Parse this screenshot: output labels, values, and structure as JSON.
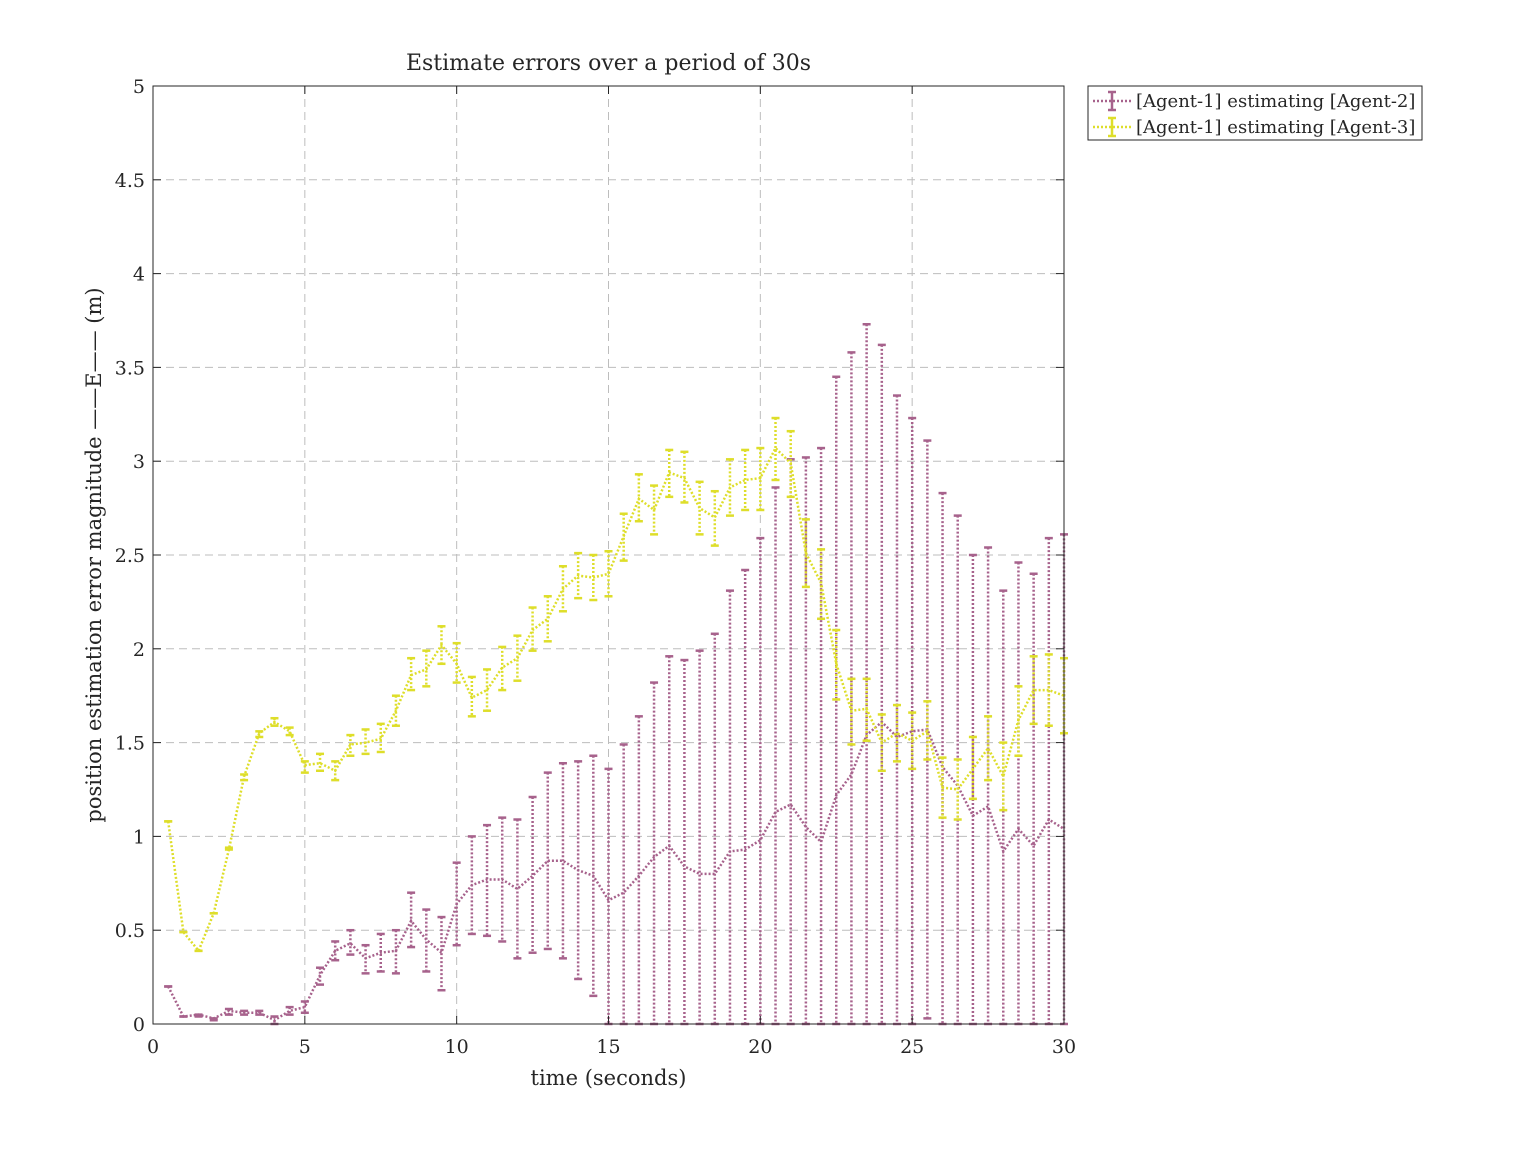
{
  "chart_data": {
    "type": "line",
    "title": "Estimate errors over a period of 30s",
    "xlabel": "time (seconds)",
    "ylabel": "position estimation error magnitude ——E—— (m)",
    "xlim": [
      0,
      30
    ],
    "ylim": [
      0,
      5
    ],
    "xticks": [
      0,
      5,
      10,
      15,
      20,
      25,
      30
    ],
    "xtick_labels": [
      "0",
      "5",
      "10",
      "15",
      "20",
      "25",
      "30"
    ],
    "yticks": [
      0,
      0.5,
      1,
      1.5,
      2,
      2.5,
      3,
      3.5,
      4,
      4.5,
      5
    ],
    "ytick_labels": [
      "0",
      "0.5",
      "1",
      "1.5",
      "2",
      "2.5",
      "3",
      "3.5",
      "4",
      "4.5",
      "5"
    ],
    "grid": true,
    "legend_position": "outside top-right",
    "x": [
      0.5,
      1,
      1.5,
      2,
      2.5,
      3,
      3.5,
      4,
      4.5,
      5,
      5.5,
      6,
      6.5,
      7,
      7.5,
      8,
      8.5,
      9,
      9.5,
      10,
      10.5,
      11,
      11.5,
      12,
      12.5,
      13,
      13.5,
      14,
      14.5,
      15,
      15.5,
      16,
      16.5,
      17,
      17.5,
      18,
      18.5,
      19,
      19.5,
      20,
      20.5,
      21,
      21.5,
      22,
      22.5,
      23,
      23.5,
      24,
      24.5,
      25,
      25.5,
      26,
      26.5,
      27,
      27.5,
      28,
      28.5,
      29,
      29.5,
      30
    ],
    "series": [
      {
        "name": "[Agent-1] estimating [Agent-2]",
        "color": "#a7628c",
        "values": [
          0.2,
          0.04,
          0.05,
          0.03,
          0.07,
          0.06,
          0.06,
          0.02,
          0.07,
          0.09,
          0.26,
          0.39,
          0.43,
          0.35,
          0.38,
          0.39,
          0.55,
          0.45,
          0.38,
          0.64,
          0.74,
          0.77,
          0.77,
          0.72,
          0.79,
          0.87,
          0.87,
          0.82,
          0.79,
          0.66,
          0.7,
          0.79,
          0.89,
          0.95,
          0.84,
          0.8,
          0.8,
          0.92,
          0.93,
          0.98,
          1.13,
          1.17,
          1.05,
          0.97,
          1.22,
          1.33,
          1.54,
          1.61,
          1.53,
          1.56,
          1.57,
          1.37,
          1.27,
          1.11,
          1.16,
          0.92,
          1.04,
          0.95,
          1.09,
          1.04
        ],
        "lower": [
          0.2,
          0.04,
          0.04,
          0.02,
          0.05,
          0.05,
          0.05,
          0.0,
          0.05,
          0.06,
          0.21,
          0.34,
          0.37,
          0.27,
          0.28,
          0.27,
          0.41,
          0.28,
          0.18,
          0.42,
          0.48,
          0.47,
          0.44,
          0.35,
          0.38,
          0.4,
          0.35,
          0.24,
          0.15,
          0,
          0,
          0,
          0,
          0,
          0,
          0,
          0,
          0,
          0,
          0,
          0,
          0,
          0,
          0,
          0,
          0,
          0,
          0,
          0,
          0,
          0.03,
          0,
          0,
          0,
          0,
          0,
          0,
          0,
          0,
          0
        ],
        "upper": [
          0.2,
          0.04,
          0.05,
          0.03,
          0.08,
          0.07,
          0.07,
          0.04,
          0.09,
          0.12,
          0.3,
          0.44,
          0.5,
          0.42,
          0.48,
          0.5,
          0.7,
          0.61,
          0.57,
          0.86,
          1.0,
          1.06,
          1.1,
          1.09,
          1.21,
          1.34,
          1.39,
          1.4,
          1.43,
          1.36,
          1.49,
          1.64,
          1.82,
          1.96,
          1.94,
          1.99,
          2.08,
          2.31,
          2.42,
          2.59,
          2.86,
          3.01,
          3.02,
          3.07,
          3.45,
          3.58,
          3.73,
          3.62,
          3.35,
          3.23,
          3.11,
          2.83,
          2.71,
          2.5,
          2.54,
          2.31,
          2.46,
          2.4,
          2.59,
          2.61
        ]
      },
      {
        "name": "[Agent-1] estimating [Agent-3]",
        "color": "#dede2a",
        "values": [
          1.08,
          0.49,
          0.39,
          0.59,
          0.93,
          1.32,
          1.55,
          1.61,
          1.56,
          1.38,
          1.39,
          1.35,
          1.49,
          1.5,
          1.52,
          1.67,
          1.86,
          1.89,
          2.02,
          1.92,
          1.74,
          1.78,
          1.9,
          1.95,
          2.1,
          2.16,
          2.32,
          2.39,
          2.38,
          2.4,
          2.6,
          2.8,
          2.74,
          2.94,
          2.91,
          2.75,
          2.7,
          2.86,
          2.9,
          2.91,
          3.07,
          2.99,
          2.51,
          2.35,
          1.92,
          1.67,
          1.68,
          1.5,
          1.55,
          1.51,
          1.56,
          1.26,
          1.25,
          1.36,
          1.47,
          1.32,
          1.62,
          1.78,
          1.78,
          1.75
        ],
        "lower": [
          1.08,
          0.49,
          0.39,
          0.59,
          0.93,
          1.3,
          1.53,
          1.59,
          1.54,
          1.34,
          1.35,
          1.3,
          1.43,
          1.44,
          1.45,
          1.59,
          1.78,
          1.8,
          1.92,
          1.82,
          1.64,
          1.67,
          1.78,
          1.83,
          1.99,
          2.04,
          2.2,
          2.27,
          2.26,
          2.28,
          2.47,
          2.68,
          2.61,
          2.81,
          2.78,
          2.61,
          2.55,
          2.71,
          2.74,
          2.74,
          2.9,
          2.81,
          2.33,
          2.16,
          1.73,
          1.49,
          1.51,
          1.35,
          1.4,
          1.36,
          1.41,
          1.1,
          1.09,
          1.2,
          1.3,
          1.14,
          1.43,
          1.6,
          1.59,
          1.55
        ],
        "upper": [
          1.08,
          0.49,
          0.39,
          0.59,
          0.94,
          1.33,
          1.56,
          1.63,
          1.58,
          1.4,
          1.44,
          1.4,
          1.54,
          1.57,
          1.6,
          1.75,
          1.95,
          1.99,
          2.12,
          2.03,
          1.85,
          1.89,
          2.01,
          2.07,
          2.22,
          2.28,
          2.44,
          2.51,
          2.5,
          2.52,
          2.72,
          2.93,
          2.87,
          3.06,
          3.05,
          2.89,
          2.84,
          3.01,
          3.06,
          3.07,
          3.23,
          3.16,
          2.69,
          2.53,
          2.1,
          1.84,
          1.84,
          1.65,
          1.7,
          1.66,
          1.72,
          1.42,
          1.41,
          1.53,
          1.64,
          1.5,
          1.8,
          1.96,
          1.97,
          1.95
        ]
      }
    ]
  }
}
